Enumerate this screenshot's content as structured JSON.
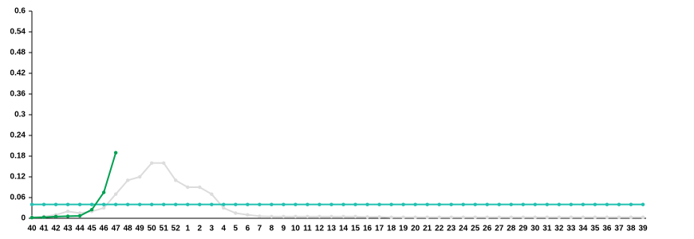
{
  "chart_data": {
    "type": "line",
    "categories": [
      "40",
      "41",
      "42",
      "43",
      "44",
      "45",
      "46",
      "47",
      "48",
      "49",
      "50",
      "51",
      "52",
      "1",
      "2",
      "3",
      "4",
      "5",
      "6",
      "7",
      "8",
      "9",
      "10",
      "11",
      "12",
      "13",
      "14",
      "15",
      "16",
      "17",
      "18",
      "19",
      "20",
      "21",
      "22",
      "23",
      "24",
      "25",
      "26",
      "27",
      "28",
      "29",
      "30",
      "31",
      "32",
      "33",
      "34",
      "35",
      "36",
      "37",
      "38",
      "39"
    ],
    "ylim": [
      0,
      0.6
    ],
    "yticks": [
      0,
      0.06,
      0.12,
      0.18,
      0.24,
      0.3,
      0.36,
      0.42,
      0.48,
      0.54,
      0.6
    ],
    "series": [
      {
        "color": "#dcdcdc",
        "values": [
          0.003,
          0.005,
          0.01,
          0.02,
          0.015,
          0.02,
          0.03,
          0.07,
          0.11,
          0.12,
          0.16,
          0.16,
          0.11,
          0.09,
          0.09,
          0.07,
          0.03,
          0.015,
          0.01,
          0.006,
          0.005,
          0.005,
          0.005,
          0.005,
          0.005,
          0.005,
          0.005,
          0.005,
          0.004,
          0.004,
          0.003,
          0.003,
          0.003,
          0.003,
          0.003,
          0.003,
          0.003,
          0.003,
          0.003,
          0.003,
          0.003,
          0.003,
          0.003,
          0.003,
          0.003,
          0.003,
          0.003,
          0.003,
          0.003,
          0.003,
          0.003,
          0.003
        ]
      },
      {
        "color": "#20c0b0",
        "values": [
          0.04,
          0.04,
          0.04,
          0.04,
          0.04,
          0.04,
          0.04,
          0.04,
          0.04,
          0.04,
          0.04,
          0.04,
          0.04,
          0.04,
          0.04,
          0.04,
          0.04,
          0.04,
          0.04,
          0.04,
          0.04,
          0.04,
          0.04,
          0.04,
          0.04,
          0.04,
          0.04,
          0.04,
          0.04,
          0.04,
          0.04,
          0.04,
          0.04,
          0.04,
          0.04,
          0.04,
          0.04,
          0.04,
          0.04,
          0.04,
          0.04,
          0.04,
          0.04,
          0.04,
          0.04,
          0.04,
          0.04,
          0.04,
          0.04,
          0.04,
          0.04,
          0.04
        ]
      },
      {
        "color": "#00a050",
        "values": [
          0.002,
          0.003,
          0.005,
          0.006,
          0.007,
          0.025,
          0.075,
          0.19,
          null,
          null,
          null,
          null,
          null,
          null,
          null,
          null,
          null,
          null,
          null,
          null,
          null,
          null,
          null,
          null,
          null,
          null,
          null,
          null,
          null,
          null,
          null,
          null,
          null,
          null,
          null,
          null,
          null,
          null,
          null,
          null,
          null,
          null,
          null,
          null,
          null,
          null,
          null,
          null,
          null,
          null,
          null,
          null
        ]
      }
    ]
  }
}
